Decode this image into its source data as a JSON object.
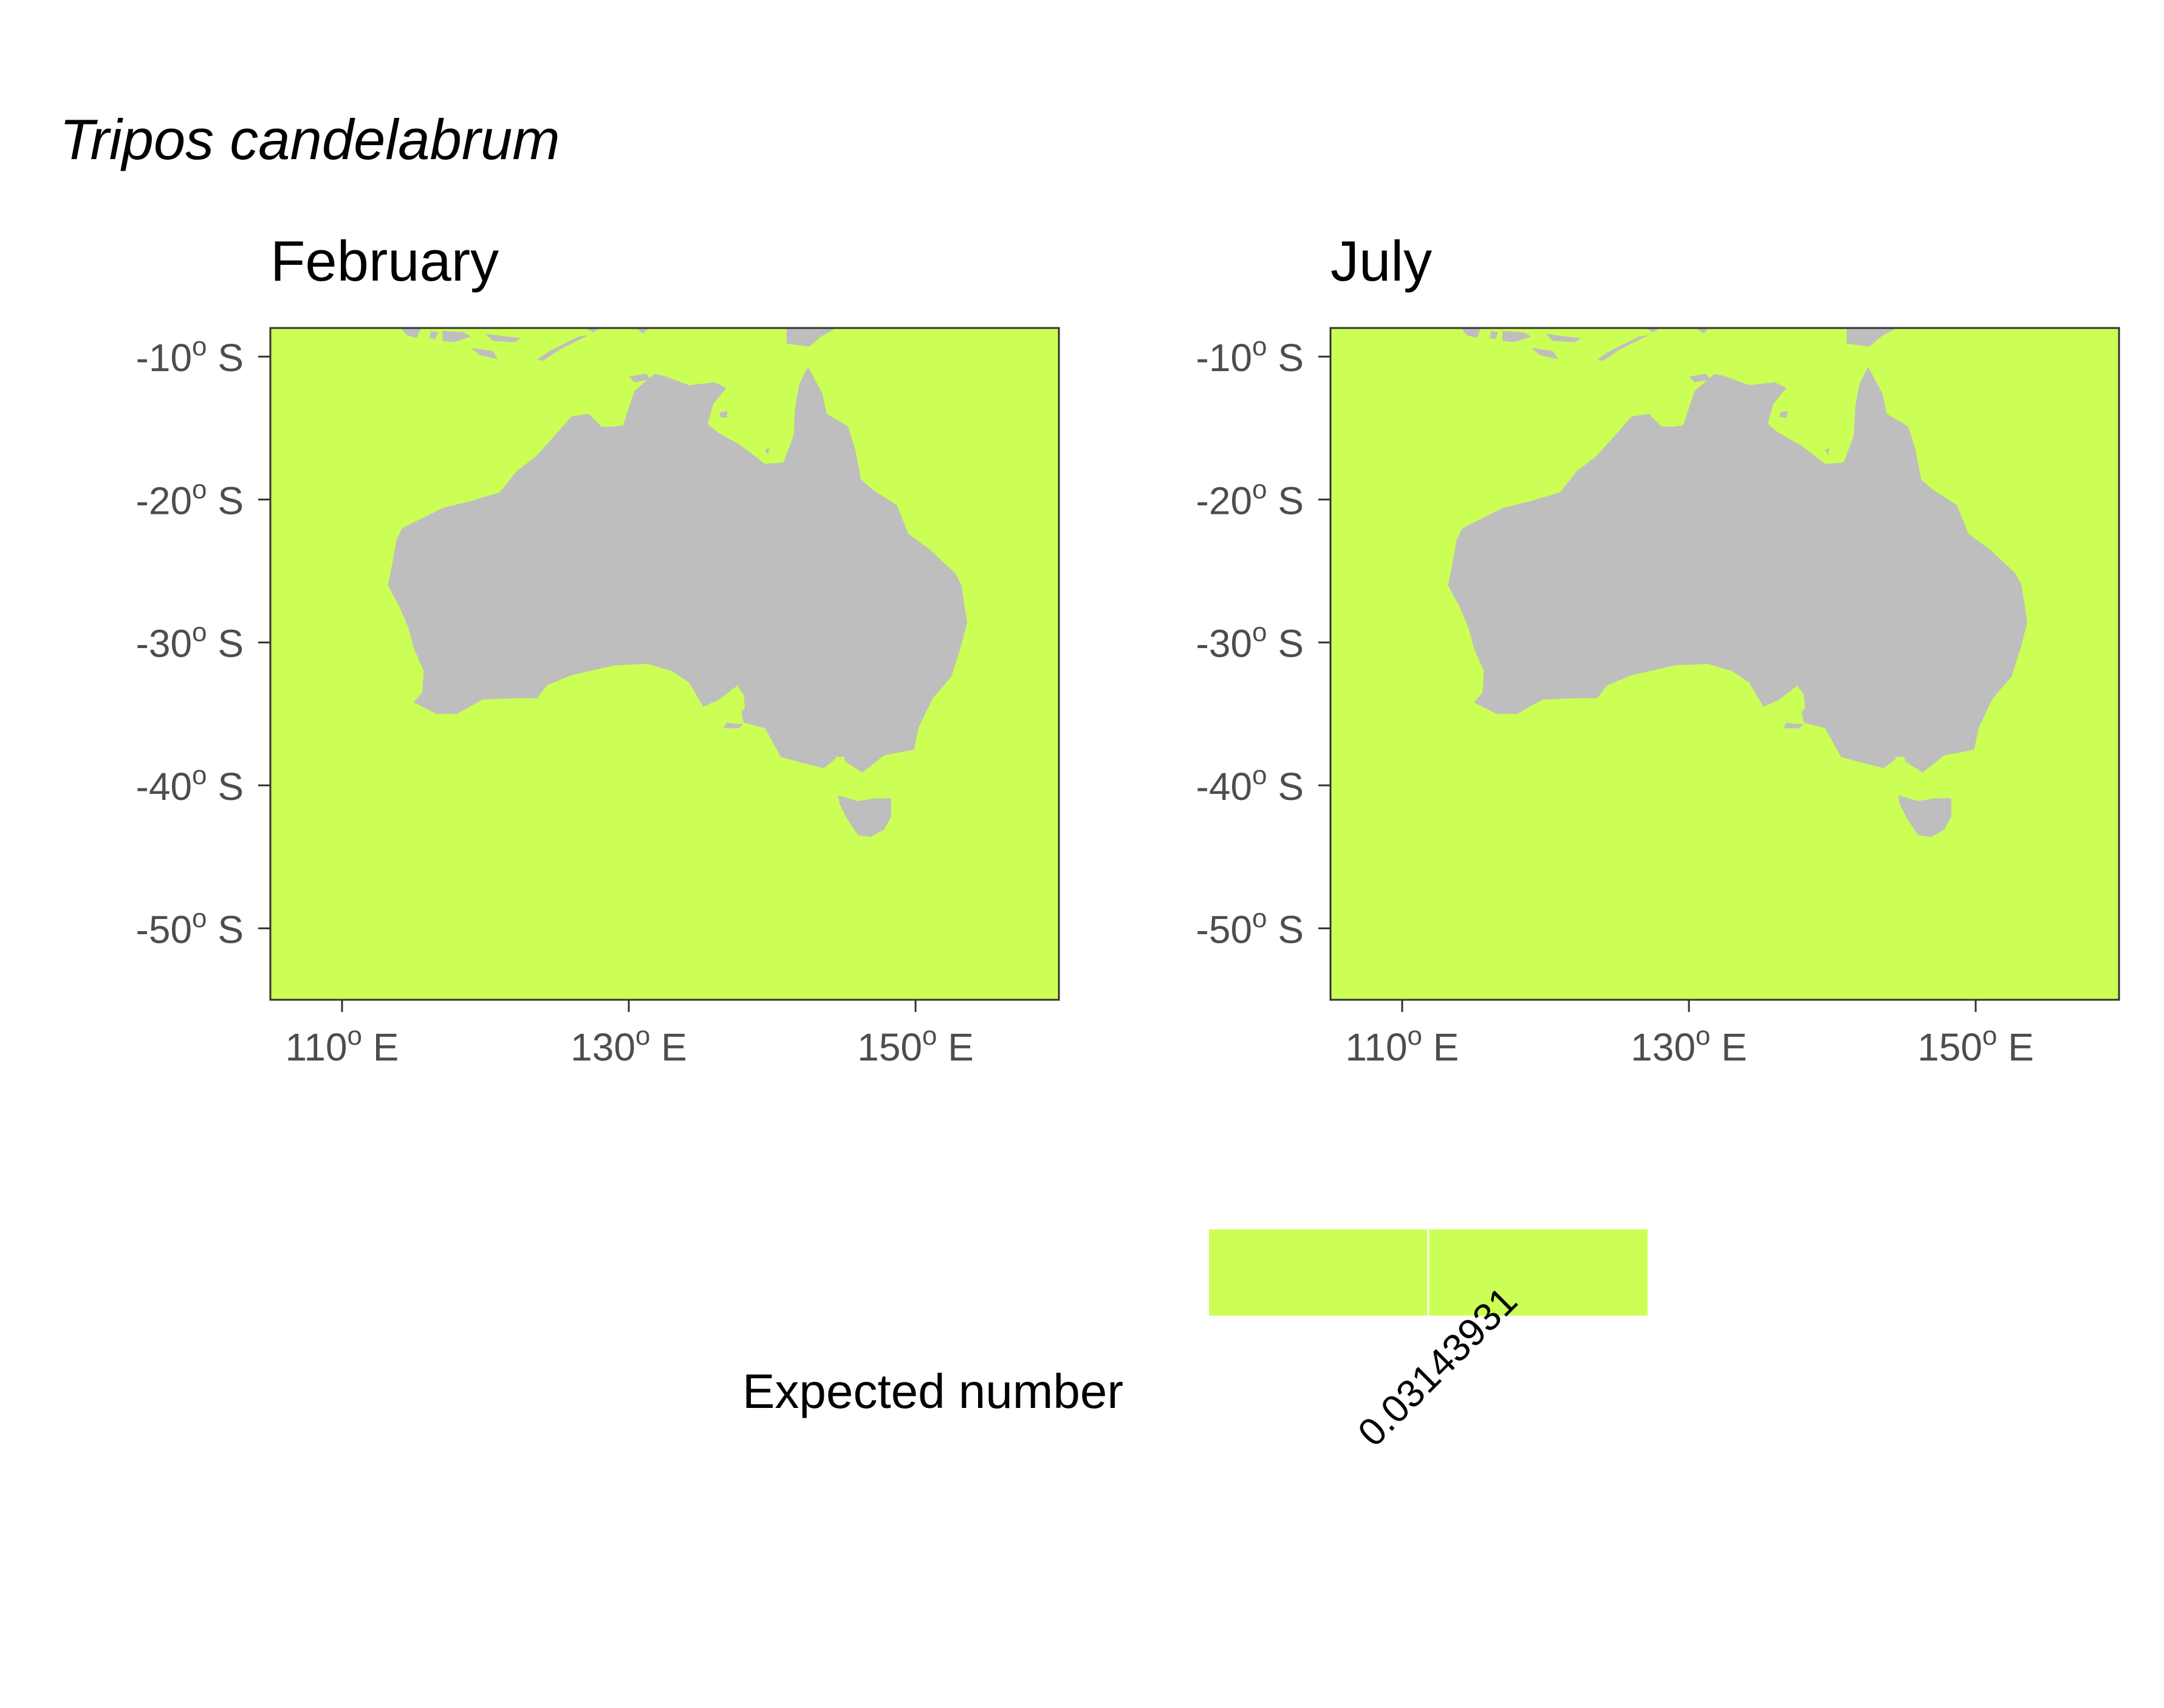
{
  "title": "Tripos candelabrum",
  "panels": [
    {
      "label": "February"
    },
    {
      "label": "July"
    }
  ],
  "axes": {
    "lon_range": [
      105,
      160
    ],
    "lat_range": [
      -55,
      -8
    ],
    "lat_ticks": [
      {
        "value": -10,
        "num": "-10",
        "sup": "o",
        "suffix": " S"
      },
      {
        "value": -20,
        "num": "-20",
        "sup": "o",
        "suffix": " S"
      },
      {
        "value": -30,
        "num": "-30",
        "sup": "o",
        "suffix": " S"
      },
      {
        "value": -40,
        "num": "-40",
        "sup": "o",
        "suffix": " S"
      },
      {
        "value": -50,
        "num": "-50",
        "sup": "o",
        "suffix": " S"
      }
    ],
    "lon_ticks": [
      {
        "value": 110,
        "num": "110",
        "sup": "o",
        "suffix": " E"
      },
      {
        "value": 130,
        "num": "130",
        "sup": "o",
        "suffix": " E"
      },
      {
        "value": 150,
        "num": "150",
        "sup": "o",
        "suffix": " E"
      }
    ]
  },
  "colors": {
    "ocean_fill": "#CCFF55",
    "land_fill": "#BEBEBE",
    "panel_border": "#333333",
    "tick_text": "#4D4D4D"
  },
  "legend": {
    "title": "Expected number",
    "label": "0.03143931",
    "color": "#CCFF55"
  },
  "chart_data": {
    "type": "heatmap",
    "title": "Tripos candelabrum",
    "panels": [
      "February",
      "July"
    ],
    "value_label": "Expected number",
    "values": {
      "February": 0.03143931,
      "July": 0.03143931
    },
    "xlim": [
      105,
      160
    ],
    "ylim": [
      -55,
      -8
    ],
    "x_ticks": [
      "110° E",
      "130° E",
      "150° E"
    ],
    "y_ticks": [
      "-10° S",
      "-20° S",
      "-30° S",
      "-40° S",
      "-50° S"
    ],
    "grid": false,
    "legend_position": "bottom"
  }
}
